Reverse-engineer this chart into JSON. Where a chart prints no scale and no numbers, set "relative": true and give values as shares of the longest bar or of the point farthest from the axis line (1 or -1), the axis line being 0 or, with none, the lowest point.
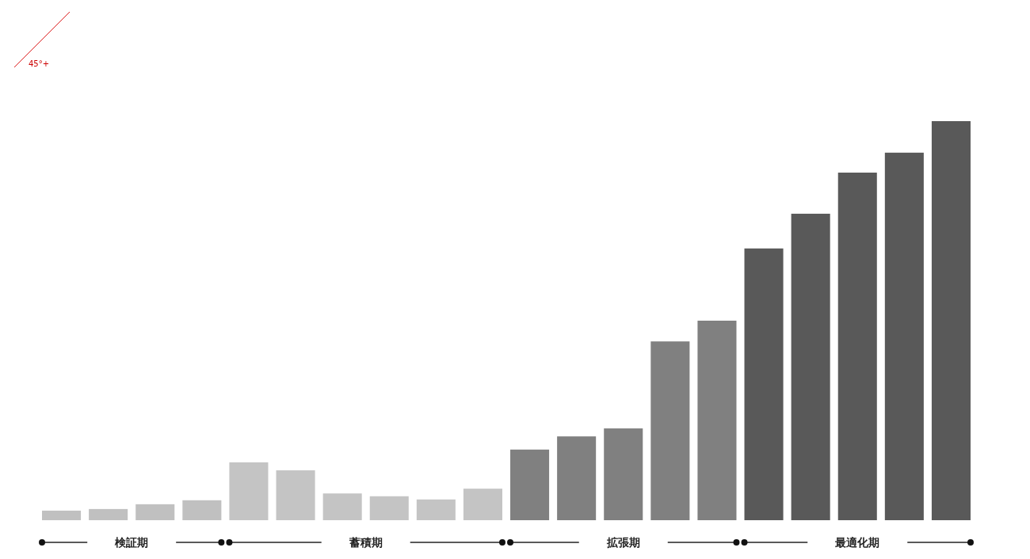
{
  "chart_data": {
    "type": "bar",
    "relative": true,
    "categories": [
      null,
      null,
      null,
      null,
      null,
      null,
      null,
      null,
      null,
      null,
      null,
      null,
      null,
      null,
      null,
      null,
      null,
      null,
      null,
      null
    ],
    "values": [
      0.024,
      0.028,
      0.04,
      0.05,
      0.145,
      0.125,
      0.067,
      0.06,
      0.052,
      0.079,
      0.177,
      0.21,
      0.23,
      0.448,
      0.5,
      0.681,
      0.768,
      0.871,
      0.921,
      1
    ],
    "colors": [
      "#c0c0c0",
      "#c0c0c0",
      "#c0c0c0",
      "#c0c0c0",
      "#c4c4c4",
      "#c4c4c4",
      "#c4c4c4",
      "#c4c4c4",
      "#c4c4c4",
      "#c4c4c4",
      "#808080",
      "#808080",
      "#808080",
      "#808080",
      "#808080",
      "#595959",
      "#595959",
      "#595959",
      "#595959",
      "#595959"
    ],
    "annotations": [
      "検証期",
      "蓄積期",
      "拡張期",
      "最適化期",
      "45°+"
    ]
  }
}
